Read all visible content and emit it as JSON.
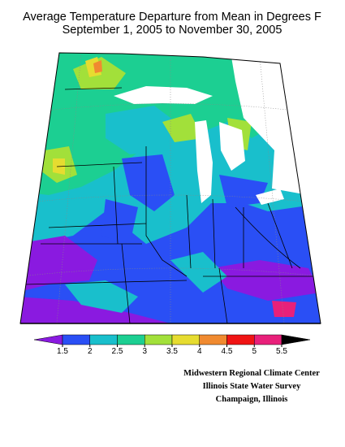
{
  "title": [
    "Average Temperature Departure from Mean in Degrees F",
    "September 1, 2005 to November 30, 2005"
  ],
  "colorbar": {
    "ticks": [
      1.5,
      2,
      2.5,
      3,
      3.5,
      4,
      4.5,
      5,
      5.5
    ],
    "colors": [
      "#8a1ae0",
      "#2a4ff5",
      "#19bfcc",
      "#1ccf92",
      "#a2e03a",
      "#e6dc30",
      "#f08a30",
      "#f01414",
      "#e8207a"
    ]
  },
  "credits": [
    "Midwestern Regional Climate Center",
    "Illinois State Water Survey",
    "Champaign, Illinois"
  ]
}
